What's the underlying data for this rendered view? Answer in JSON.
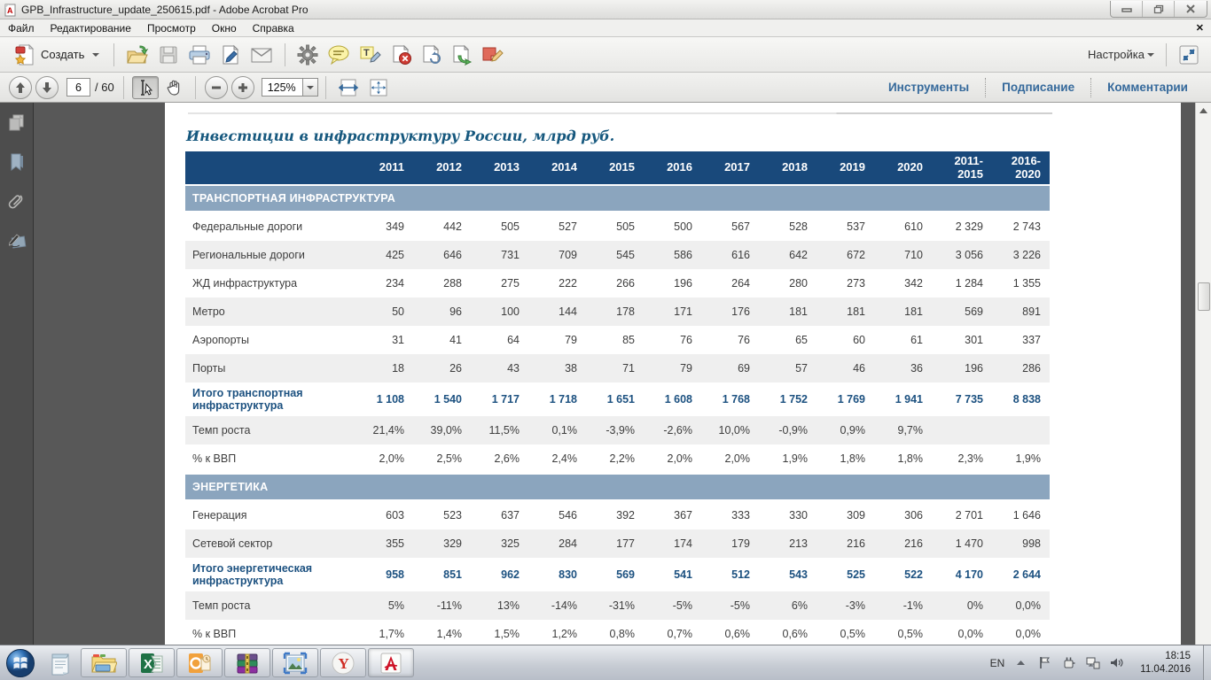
{
  "window": {
    "title": "GPB_Infrastructure_update_250615.pdf - Adobe Acrobat Pro"
  },
  "menu_bar": {
    "items": [
      "Файл",
      "Редактирование",
      "Просмотр",
      "Окно",
      "Справка"
    ]
  },
  "toolbar": {
    "create_label": "Создать",
    "settings_label": "Настройка",
    "icon_names": [
      "folder-open-icon",
      "save-icon",
      "print-icon",
      "sign-document-icon",
      "email-icon",
      "gear-icon",
      "comment-icon",
      "highlight-text-icon",
      "delete-pages-icon",
      "page-refresh-icon",
      "page-export-icon",
      "note-pencil-icon"
    ],
    "page_current": "6",
    "page_total": "/ 60",
    "zoom_level": "125%",
    "panel_tabs": [
      "Инструменты",
      "Подписание",
      "Комментарии"
    ]
  },
  "document": {
    "title": "Инвестиции в инфраструктуру России, млрд руб.",
    "table": {
      "col_headers": [
        "",
        "2011",
        "2012",
        "2013",
        "2014",
        "2015",
        "2016",
        "2017",
        "2018",
        "2019",
        "2020",
        "2011-\n2015",
        "2016-\n2020"
      ],
      "rows": [
        {
          "type": "section",
          "label": "ТРАНСПОРТНАЯ ИНФРАСТРУКТУРА"
        },
        {
          "type": "data",
          "shade": false,
          "label": "Федеральные дороги",
          "values": [
            "349",
            "442",
            "505",
            "527",
            "505",
            "500",
            "567",
            "528",
            "537",
            "610",
            "2 329",
            "2 743"
          ]
        },
        {
          "type": "data",
          "shade": true,
          "label": "Региональные дороги",
          "values": [
            "425",
            "646",
            "731",
            "709",
            "545",
            "586",
            "616",
            "642",
            "672",
            "710",
            "3 056",
            "3 226"
          ]
        },
        {
          "type": "data",
          "shade": false,
          "label": "ЖД инфраструктура",
          "values": [
            "234",
            "288",
            "275",
            "222",
            "266",
            "196",
            "264",
            "280",
            "273",
            "342",
            "1 284",
            "1 355"
          ]
        },
        {
          "type": "data",
          "shade": true,
          "label": "Метро",
          "values": [
            "50",
            "96",
            "100",
            "144",
            "178",
            "171",
            "176",
            "181",
            "181",
            "181",
            "569",
            "891"
          ]
        },
        {
          "type": "data",
          "shade": false,
          "label": "Аэропорты",
          "values": [
            "31",
            "41",
            "64",
            "79",
            "85",
            "76",
            "76",
            "65",
            "60",
            "61",
            "301",
            "337"
          ]
        },
        {
          "type": "data",
          "shade": true,
          "label": "Порты",
          "values": [
            "18",
            "26",
            "43",
            "38",
            "71",
            "79",
            "69",
            "57",
            "46",
            "36",
            "196",
            "286"
          ]
        },
        {
          "type": "total",
          "shade": false,
          "label": "Итого транспортная инфраструктура",
          "values": [
            "1 108",
            "1 540",
            "1 717",
            "1 718",
            "1 651",
            "1 608",
            "1 768",
            "1 752",
            "1 769",
            "1 941",
            "7 735",
            "8 838"
          ]
        },
        {
          "type": "data",
          "shade": true,
          "label": "Темп роста",
          "values": [
            "21,4%",
            "39,0%",
            "11,5%",
            "0,1%",
            "-3,9%",
            "-2,6%",
            "10,0%",
            "-0,9%",
            "0,9%",
            "9,7%",
            "",
            ""
          ]
        },
        {
          "type": "data",
          "shade": false,
          "label": "% к ВВП",
          "values": [
            "2,0%",
            "2,5%",
            "2,6%",
            "2,4%",
            "2,2%",
            "2,0%",
            "2,0%",
            "1,9%",
            "1,8%",
            "1,8%",
            "2,3%",
            "1,9%"
          ]
        },
        {
          "type": "section",
          "label": "ЭНЕРГЕТИКА"
        },
        {
          "type": "data",
          "shade": false,
          "label": "Генерация",
          "values": [
            "603",
            "523",
            "637",
            "546",
            "392",
            "367",
            "333",
            "330",
            "309",
            "306",
            "2 701",
            "1 646"
          ]
        },
        {
          "type": "data",
          "shade": true,
          "label": "Сетевой сектор",
          "values": [
            "355",
            "329",
            "325",
            "284",
            "177",
            "174",
            "179",
            "213",
            "216",
            "216",
            "1 470",
            "998"
          ]
        },
        {
          "type": "total",
          "shade": false,
          "label": "Итого энергетическая инфраструктура",
          "values": [
            "958",
            "851",
            "962",
            "830",
            "569",
            "541",
            "512",
            "543",
            "525",
            "522",
            "4 170",
            "2 644"
          ]
        },
        {
          "type": "data",
          "shade": true,
          "label": "Темп роста",
          "values": [
            "5%",
            "-11%",
            "13%",
            "-14%",
            "-31%",
            "-5%",
            "-5%",
            "6%",
            "-3%",
            "-1%",
            "0%",
            "0,0%"
          ]
        },
        {
          "type": "data",
          "shade": false,
          "label": "% к ВВП",
          "values": [
            "1,7%",
            "1,4%",
            "1,5%",
            "1,2%",
            "0,8%",
            "0,7%",
            "0,6%",
            "0,6%",
            "0,5%",
            "0,5%",
            "0,0%",
            "0,0%"
          ]
        }
      ]
    }
  },
  "navpane": {
    "icon_names": [
      "pages-icon",
      "bookmarks-icon",
      "attachments-icon",
      "signatures-icon"
    ]
  },
  "taskbar": {
    "app_names": [
      "notepad-icon",
      "explorer-icon",
      "excel-icon",
      "outlook-icon",
      "winrar-icon",
      "photo-viewer-icon",
      "yandex-browser-icon",
      "acrobat-icon"
    ],
    "tray": {
      "language": "EN",
      "time": "18:15",
      "date": "11.04.2016"
    }
  },
  "colors": {
    "table_header": "#19497B",
    "table_section": "#8BA5BE",
    "total_text": "#1C5180",
    "panel_tab_text": "#35699B",
    "row_shade": "#EFEFEF"
  }
}
